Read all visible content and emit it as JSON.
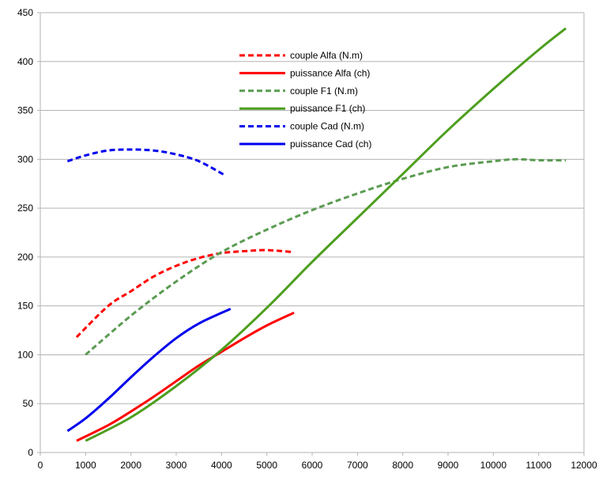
{
  "chart_data": {
    "type": "line",
    "title": "",
    "xlabel": "",
    "ylabel": "",
    "xlim": [
      0,
      12000
    ],
    "ylim": [
      0,
      450
    ],
    "x_ticks": [
      0,
      1000,
      2000,
      3000,
      4000,
      5000,
      6000,
      7000,
      8000,
      9000,
      10000,
      11000,
      12000
    ],
    "y_ticks": [
      0,
      50,
      100,
      150,
      200,
      250,
      300,
      350,
      400,
      450
    ],
    "grid": "horizontal",
    "legend_position": "top-center",
    "series": [
      {
        "name": "couple Alfa (N.m)",
        "color": "#ff0000",
        "dash": true,
        "points": [
          [
            800,
            118
          ],
          [
            1500,
            150
          ],
          [
            2000,
            165
          ],
          [
            2500,
            180
          ],
          [
            3000,
            191
          ],
          [
            3500,
            199
          ],
          [
            4000,
            204
          ],
          [
            4500,
            206
          ],
          [
            5000,
            207
          ],
          [
            5600,
            205
          ]
        ]
      },
      {
        "name": "puissance Alfa (ch)",
        "color": "#ff0000",
        "dash": false,
        "points": [
          [
            800,
            12
          ],
          [
            1500,
            28
          ],
          [
            2000,
            42
          ],
          [
            2500,
            57
          ],
          [
            3000,
            73
          ],
          [
            3500,
            89
          ],
          [
            4000,
            103
          ],
          [
            4500,
            117
          ],
          [
            5000,
            130
          ],
          [
            5600,
            143
          ]
        ]
      },
      {
        "name": "couple F1 (N.m)",
        "color": "#5b9b52",
        "dash": true,
        "points": [
          [
            1000,
            100
          ],
          [
            2000,
            140
          ],
          [
            3000,
            175
          ],
          [
            4000,
            205
          ],
          [
            5000,
            228
          ],
          [
            6000,
            248
          ],
          [
            7000,
            265
          ],
          [
            8000,
            280
          ],
          [
            9000,
            292
          ],
          [
            10000,
            298
          ],
          [
            10500,
            300
          ],
          [
            11000,
            299
          ],
          [
            11600,
            299
          ]
        ]
      },
      {
        "name": "puissance F1 (ch)",
        "color": "#4d9e1e",
        "dash": false,
        "points": [
          [
            1000,
            12
          ],
          [
            2000,
            36
          ],
          [
            3000,
            68
          ],
          [
            4000,
            105
          ],
          [
            5000,
            148
          ],
          [
            6000,
            195
          ],
          [
            7000,
            240
          ],
          [
            8000,
            285
          ],
          [
            9000,
            330
          ],
          [
            10000,
            372
          ],
          [
            11000,
            412
          ],
          [
            11600,
            434
          ]
        ]
      },
      {
        "name": "couple Cad (N.m)",
        "color": "#0000ee",
        "dash": true,
        "points": [
          [
            600,
            298
          ],
          [
            1000,
            304
          ],
          [
            1500,
            309
          ],
          [
            2000,
            310
          ],
          [
            2500,
            309
          ],
          [
            3000,
            305
          ],
          [
            3500,
            298
          ],
          [
            4100,
            283
          ]
        ]
      },
      {
        "name": "puissance Cad (ch)",
        "color": "#0000ee",
        "dash": false,
        "points": [
          [
            600,
            22
          ],
          [
            1000,
            35
          ],
          [
            1500,
            55
          ],
          [
            2000,
            77
          ],
          [
            2500,
            98
          ],
          [
            3000,
            117
          ],
          [
            3500,
            132
          ],
          [
            4200,
            147
          ]
        ]
      }
    ]
  }
}
